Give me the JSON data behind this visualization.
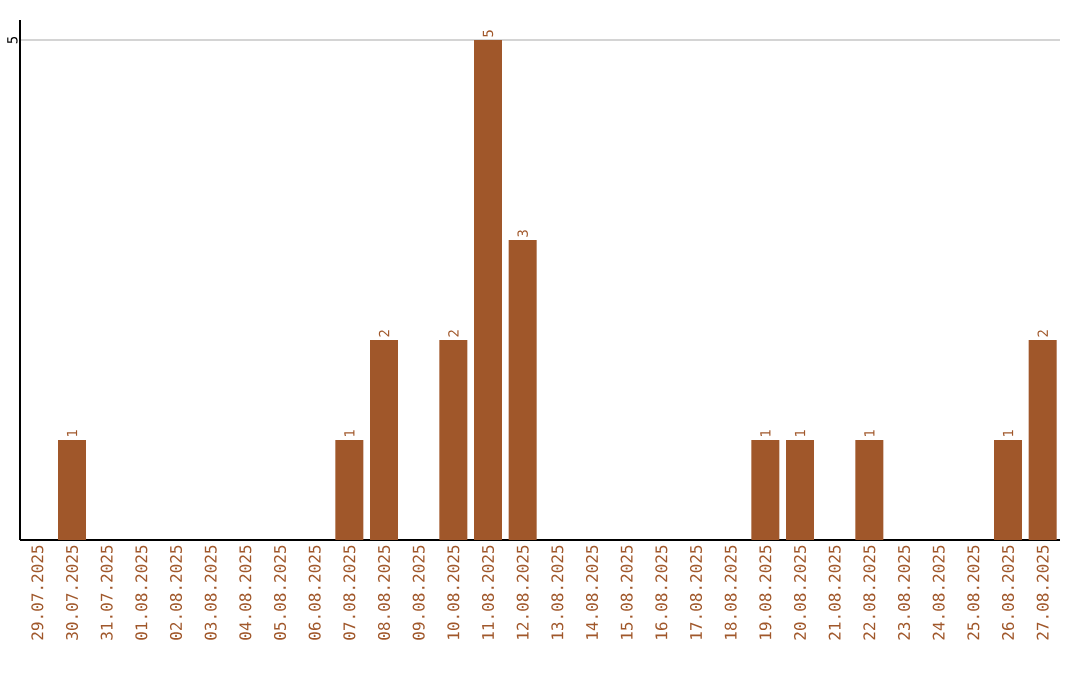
{
  "chart_data": {
    "type": "bar",
    "categories": [
      "29.07.2025",
      "30.07.2025",
      "31.07.2025",
      "01.08.2025",
      "02.08.2025",
      "03.08.2025",
      "04.08.2025",
      "05.08.2025",
      "06.08.2025",
      "07.08.2025",
      "08.08.2025",
      "09.08.2025",
      "10.08.2025",
      "11.08.2025",
      "12.08.2025",
      "13.08.2025",
      "14.08.2025",
      "15.08.2025",
      "16.08.2025",
      "17.08.2025",
      "18.08.2025",
      "19.08.2025",
      "20.08.2025",
      "21.08.2025",
      "22.08.2025",
      "23.08.2025",
      "24.08.2025",
      "25.08.2025",
      "26.08.2025",
      "27.08.2025"
    ],
    "values": [
      0,
      1,
      0,
      0,
      0,
      0,
      0,
      0,
      0,
      1,
      2,
      0,
      2,
      5,
      3,
      0,
      0,
      0,
      0,
      0,
      0,
      1,
      1,
      0,
      1,
      0,
      0,
      0,
      1,
      2
    ],
    "value_labels": [
      null,
      "1",
      null,
      null,
      null,
      null,
      null,
      null,
      null,
      "1",
      "2",
      null,
      "2",
      "5",
      "3",
      null,
      null,
      null,
      null,
      null,
      null,
      "1",
      "1",
      null,
      "1",
      null,
      null,
      null,
      "1",
      "2"
    ],
    "color": "#a0572a",
    "ylim": [
      0,
      5.2
    ],
    "yticks": [
      5
    ],
    "grid": "y"
  }
}
